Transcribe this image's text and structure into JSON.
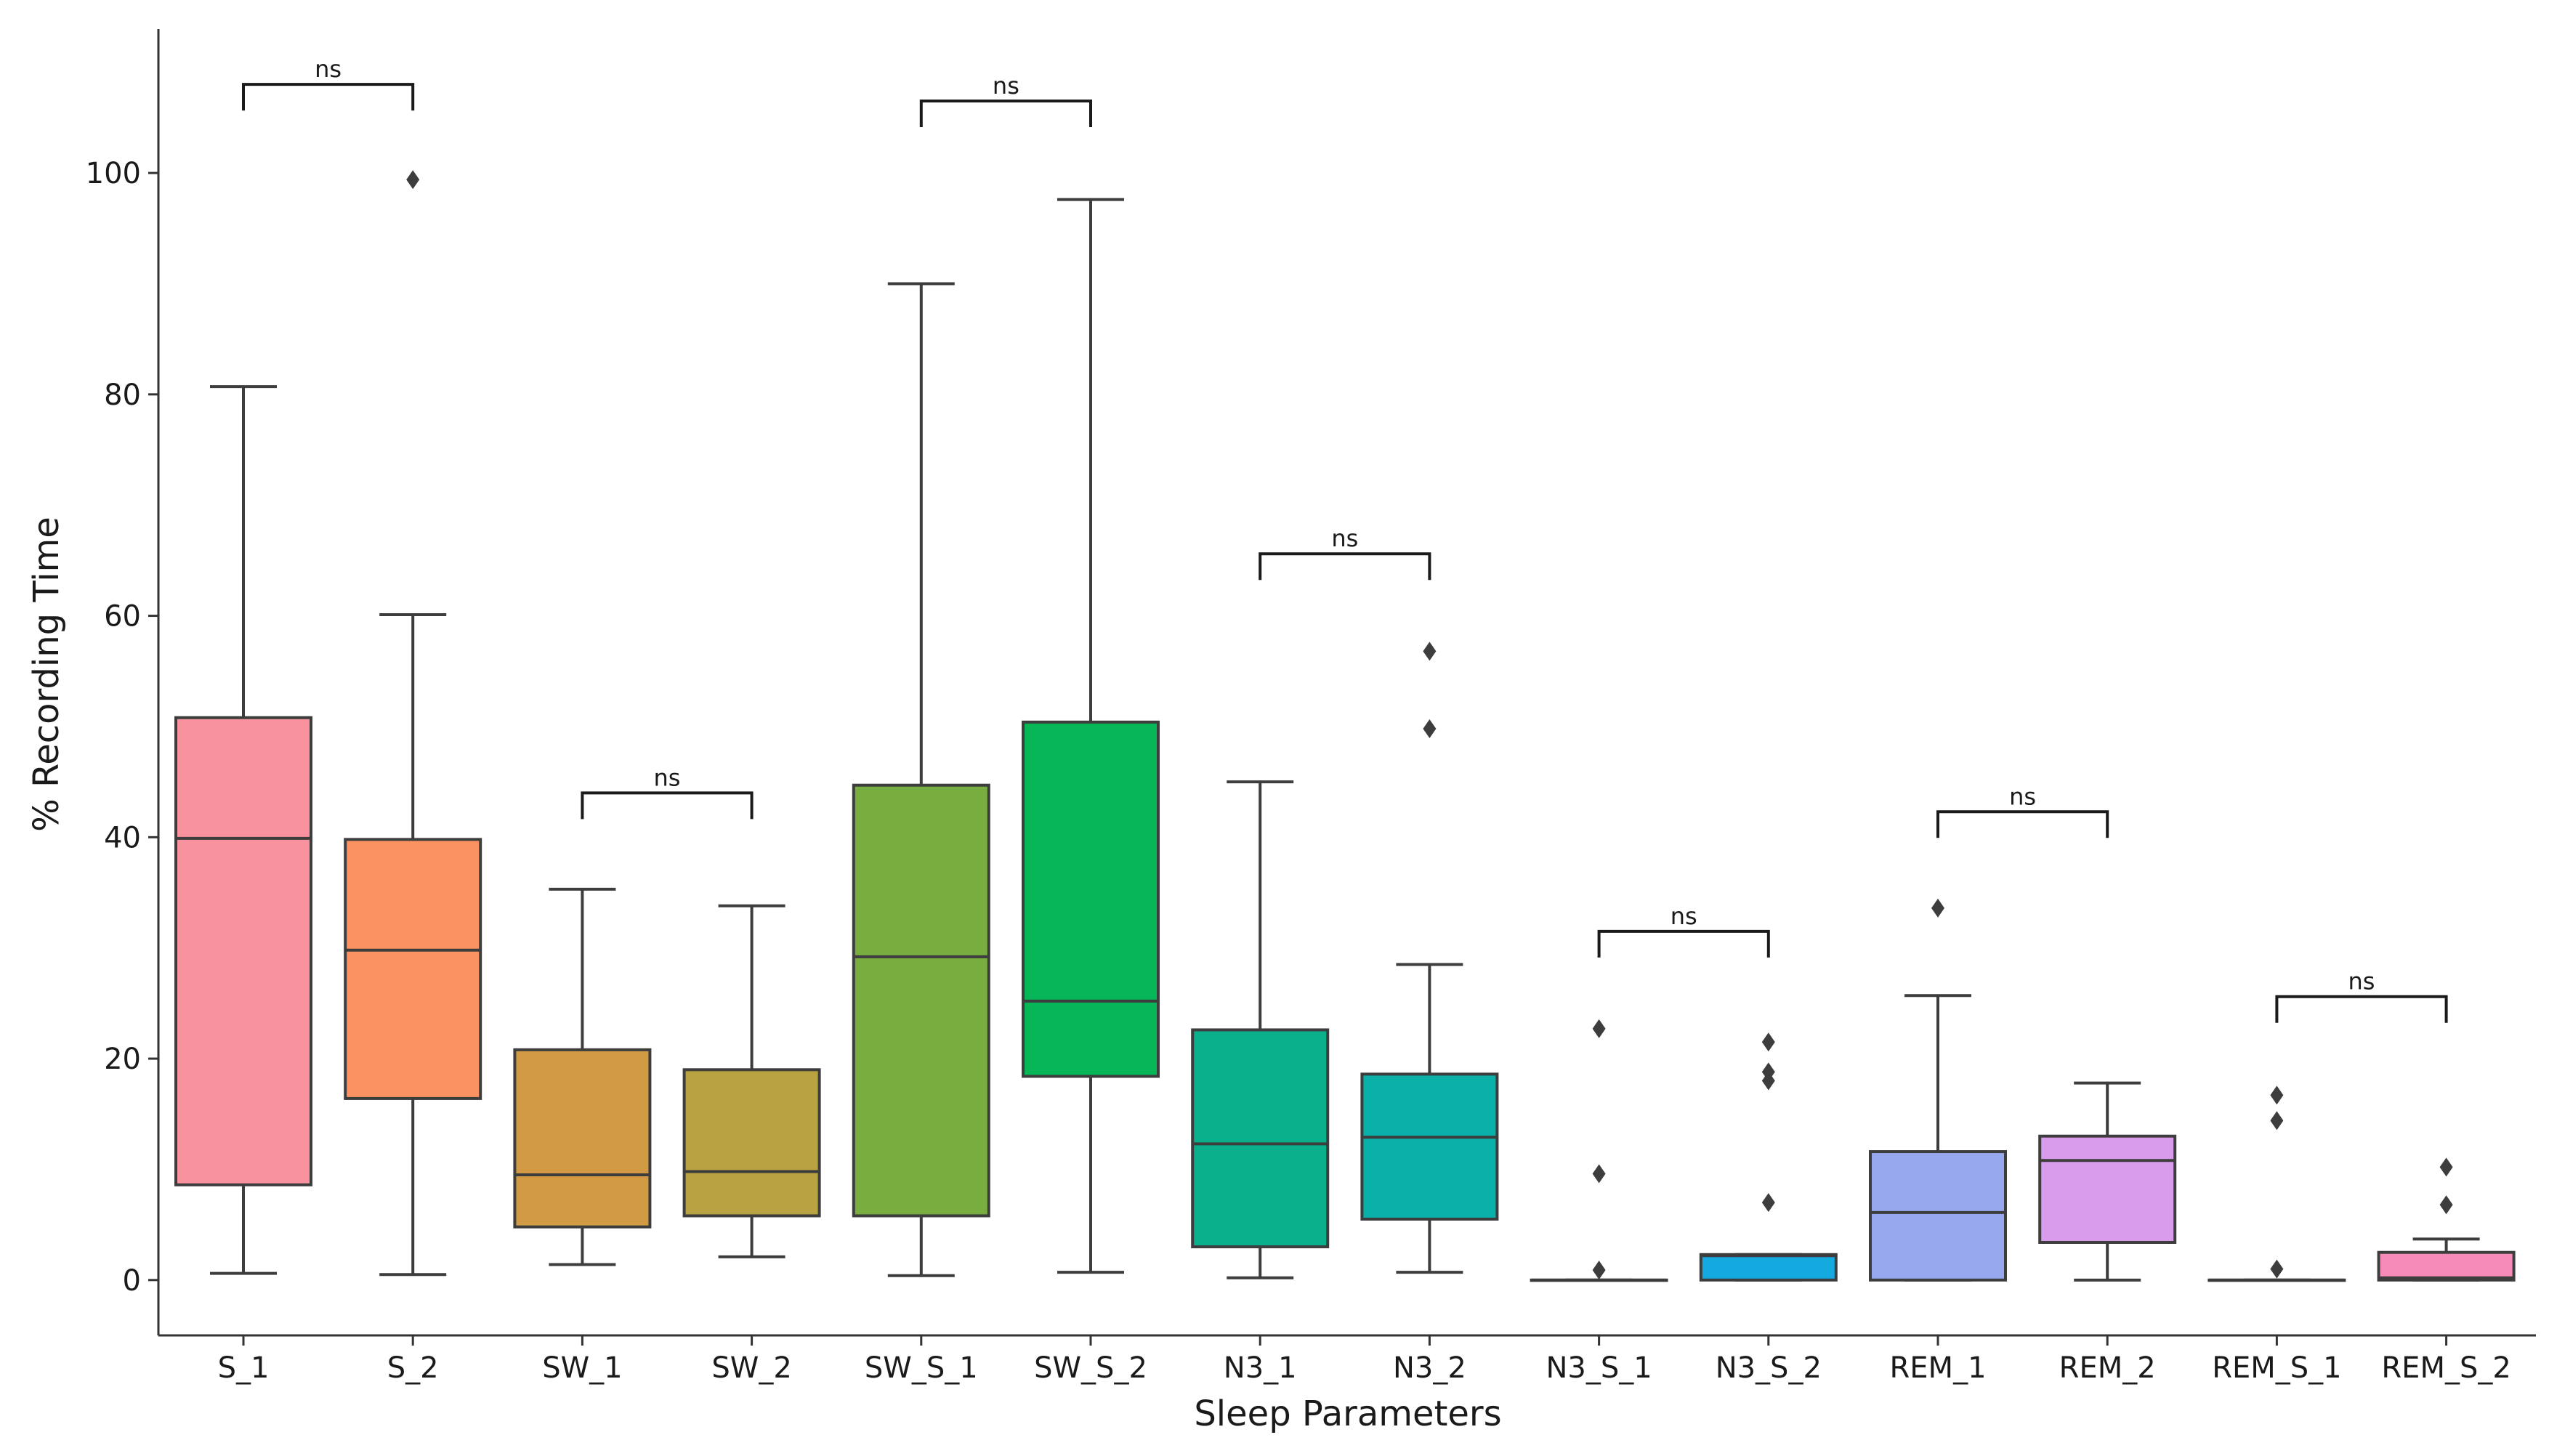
{
  "chart_data": {
    "type": "box",
    "xlabel": "Sleep Parameters",
    "ylabel": "% Recording Time",
    "ylim": [
      -5,
      113
    ],
    "yticks": [
      0,
      20,
      40,
      60,
      80,
      100
    ],
    "grid": false,
    "series": [
      {
        "name": "S_1",
        "color": "#f8929f",
        "whisker_low": 0.6,
        "q1": 8.6,
        "median": 39.9,
        "q3": 50.8,
        "whisker_high": 80.7,
        "outliers": []
      },
      {
        "name": "S_2",
        "color": "#fb9262",
        "whisker_low": 0.5,
        "q1": 16.4,
        "median": 29.8,
        "q3": 39.8,
        "whisker_high": 60.1,
        "outliers": [
          99.4
        ]
      },
      {
        "name": "SW_1",
        "color": "#d39a44",
        "whisker_low": 1.4,
        "q1": 4.8,
        "median": 9.5,
        "q3": 20.8,
        "whisker_high": 35.3,
        "outliers": []
      },
      {
        "name": "SW_2",
        "color": "#b8a340",
        "whisker_low": 2.1,
        "q1": 5.8,
        "median": 9.8,
        "q3": 19.0,
        "whisker_high": 33.8,
        "outliers": []
      },
      {
        "name": "SW_S_1",
        "color": "#78ad3f",
        "whisker_low": 0.4,
        "q1": 5.8,
        "median": 29.2,
        "q3": 44.7,
        "whisker_high": 90.0,
        "outliers": []
      },
      {
        "name": "SW_S_2",
        "color": "#06b657",
        "whisker_low": 0.7,
        "q1": 18.4,
        "median": 25.2,
        "q3": 50.4,
        "whisker_high": 97.6,
        "outliers": []
      },
      {
        "name": "N3_1",
        "color": "#0ab08c",
        "whisker_low": 0.2,
        "q1": 3.0,
        "median": 12.3,
        "q3": 22.6,
        "whisker_high": 45.0,
        "outliers": []
      },
      {
        "name": "N3_2",
        "color": "#0ab1a8",
        "whisker_low": 0.7,
        "q1": 5.5,
        "median": 12.9,
        "q3": 18.6,
        "whisker_high": 28.5,
        "outliers": [
          49.8,
          56.8
        ]
      },
      {
        "name": "N3_S_1",
        "color": "#12b0c4",
        "whisker_low": 0.0,
        "q1": 0.0,
        "median": 0.0,
        "q3": 0.0,
        "whisker_high": 0.0,
        "outliers": [
          0.9,
          9.6,
          22.7
        ]
      },
      {
        "name": "N3_S_2",
        "color": "#14a9df",
        "whisker_low": 0.0,
        "q1": 0.0,
        "median": 2.2,
        "q3": 2.3,
        "whisker_high": 2.3,
        "outliers": [
          7.0,
          18.0,
          18.8,
          21.5
        ]
      },
      {
        "name": "REM_1",
        "color": "#98a8ee",
        "whisker_low": 0.0,
        "q1": 0.0,
        "median": 6.1,
        "q3": 11.6,
        "whisker_high": 25.7,
        "outliers": [
          33.6
        ]
      },
      {
        "name": "REM_2",
        "color": "#d99ced",
        "whisker_low": 0.0,
        "q1": 3.4,
        "median": 10.8,
        "q3": 13.0,
        "whisker_high": 17.8,
        "outliers": []
      },
      {
        "name": "REM_S_1",
        "color": "#f08ad8",
        "whisker_low": 0.0,
        "q1": 0.0,
        "median": 0.0,
        "q3": 0.0,
        "whisker_high": 0.0,
        "outliers": [
          1.0,
          14.4,
          16.7
        ]
      },
      {
        "name": "REM_S_2",
        "color": "#f68bb9",
        "whisker_low": 0.0,
        "q1": 0.0,
        "median": 0.2,
        "q3": 2.5,
        "whisker_high": 3.7,
        "outliers": [
          6.8,
          10.2
        ]
      }
    ],
    "annotations": [
      {
        "pair": [
          0,
          1
        ],
        "label": "ns",
        "y": 108.0
      },
      {
        "pair": [
          2,
          3
        ],
        "label": "ns",
        "y": 44.0
      },
      {
        "pair": [
          4,
          5
        ],
        "label": "ns",
        "y": 106.5
      },
      {
        "pair": [
          6,
          7
        ],
        "label": "ns",
        "y": 65.6
      },
      {
        "pair": [
          8,
          9
        ],
        "label": "ns",
        "y": 31.5
      },
      {
        "pair": [
          10,
          11
        ],
        "label": "ns",
        "y": 42.3
      },
      {
        "pair": [
          12,
          13
        ],
        "label": "ns",
        "y": 25.6
      }
    ]
  }
}
